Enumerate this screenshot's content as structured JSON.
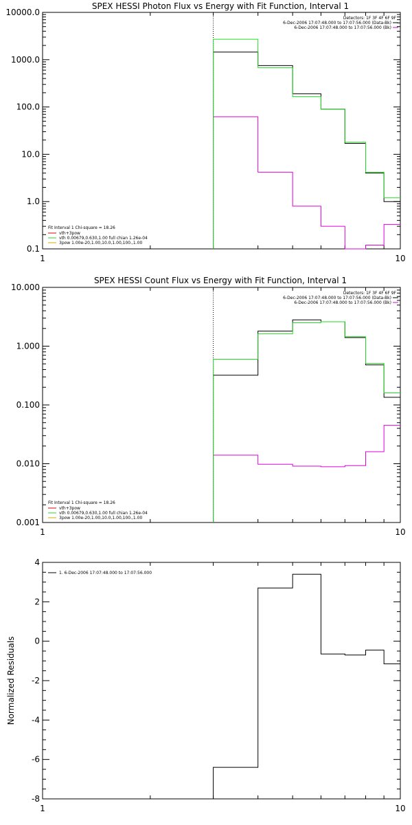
{
  "chart_data": [
    {
      "type": "line",
      "title": "SPEX HESSI Photon Flux vs Energy with Fit Function, Interval 1",
      "xscale": "log",
      "yscale": "log",
      "xlim": [
        1,
        10
      ],
      "ylim": [
        0.1,
        10000
      ],
      "xticks": [
        "1",
        "10"
      ],
      "yticks": [
        "10000.0",
        "1000.0",
        "100.0",
        "10.0",
        "1.0",
        "0.1"
      ],
      "ytick_values": [
        10000,
        1000,
        100,
        10,
        1,
        0.1
      ],
      "vline_x": 3,
      "edges": [
        3,
        4,
        5,
        6,
        7,
        8,
        9,
        10
      ],
      "series": [
        {
          "name": "6-Dec-2006 17:07:48.000 to 17:07:56.000 (Data-Bk)",
          "color": "#000000",
          "values": [
            1450,
            750,
            190,
            90,
            17,
            4,
            1.0
          ]
        },
        {
          "name": "6-Dec-2006 17:07:48.000 to 17:07:56.000 (Bk)",
          "color": "#dd00dd",
          "values": [
            62,
            4.2,
            0.8,
            0.3,
            0.1,
            0.12,
            0.33
          ]
        },
        {
          "name": "vth+3pow",
          "color": "#22dd22",
          "values": [
            2700,
            680,
            165,
            90,
            18,
            4.2,
            1.2
          ]
        }
      ],
      "legend_top": [
        "Detectors: 1F 3F 4F 6F 9F",
        "6-Dec-2006 17:07:48.000 to 17:07:56.000 (Data-Bk)",
        "6-Dec-2006 17:07:48.000 to 17:07:56.000 (Bk)"
      ],
      "legend_bottom": {
        "header": "Fit Interval 1     Chi-square = 18.26",
        "items": [
          {
            "text": "vth+3pow",
            "color": "#dd0000"
          },
          {
            "text": "vth 0.00679,0.630,1.00   full chian 1.26e-04",
            "color": "#22dd22"
          },
          {
            "text": "3pow 1.00e-20,1.00,10.0,1.00,100.,1.00",
            "color": "#ddaa00"
          }
        ]
      }
    },
    {
      "type": "line",
      "title": "SPEX HESSI Count Flux vs Energy with Fit Function, Interval 1",
      "xscale": "log",
      "yscale": "log",
      "xlim": [
        1,
        10
      ],
      "ylim": [
        0.001,
        10
      ],
      "xticks": [
        "1",
        "10"
      ],
      "yticks": [
        "10.000",
        "1.000",
        "0.100",
        "0.010",
        "0.001"
      ],
      "ytick_values": [
        10,
        1,
        0.1,
        0.01,
        0.001
      ],
      "vline_x": 3,
      "edges": [
        3,
        4,
        5,
        6,
        7,
        8,
        9,
        10
      ],
      "series": [
        {
          "name": "6-Dec-2006 17:07:48.000 to 17:07:56.000 (Data-Bk)",
          "color": "#000000",
          "values": [
            0.32,
            1.8,
            2.8,
            2.6,
            1.4,
            0.48,
            0.135
          ]
        },
        {
          "name": "6-Dec-2006 17:07:48.000 to 17:07:56.000 (Bk)",
          "color": "#dd00dd",
          "values": [
            0.014,
            0.0098,
            0.0091,
            0.0089,
            0.0093,
            0.016,
            0.045
          ]
        },
        {
          "name": "vth+3pow",
          "color": "#22dd22",
          "values": [
            0.6,
            1.62,
            2.5,
            2.6,
            1.45,
            0.51,
            0.16
          ]
        }
      ],
      "legend_top": [
        "Detectors: 1F 3F 4F 6F 9F",
        "6-Dec-2006 17:07:48.000 to 17:07:56.000 (Data-Bk)",
        "6-Dec-2006 17:07:48.000 to 17:07:56.000 (Bk)"
      ],
      "legend_bottom": {
        "header": "Fit Interval 1     Chi-square = 18.26",
        "items": [
          {
            "text": "vth+3pow",
            "color": "#dd0000"
          },
          {
            "text": "vth 0.00679,0.630,1.00   full chian 1.26e-04",
            "color": "#22dd22"
          },
          {
            "text": "3pow 1.00e-20,1.00,10.0,1.00,100.,1.00",
            "color": "#ddaa00"
          }
        ]
      }
    },
    {
      "type": "line",
      "title": "",
      "xscale": "log",
      "yscale": "linear",
      "xlim": [
        1,
        10
      ],
      "ylim": [
        -8,
        4
      ],
      "xticks": [
        "1",
        "10"
      ],
      "yticks": [
        "4",
        "2",
        "0",
        "-2",
        "-4",
        "-6",
        "-8"
      ],
      "ytick_values": [
        4,
        2,
        0,
        -2,
        -4,
        -6,
        -8
      ],
      "ylabel": "Normalized Residuals",
      "edges": [
        3,
        4,
        5,
        6,
        7,
        8,
        9,
        10
      ],
      "series": [
        {
          "name": "1.  6-Dec-2006 17:07:48.000 to 17:07:56.000",
          "color": "#000000",
          "values": [
            -6.4,
            2.7,
            3.4,
            -0.65,
            -0.7,
            -0.45,
            -1.15
          ]
        }
      ],
      "legend_top": [
        "1.  6-Dec-2006 17:07:48.000 to 17:07:56.000"
      ]
    }
  ]
}
